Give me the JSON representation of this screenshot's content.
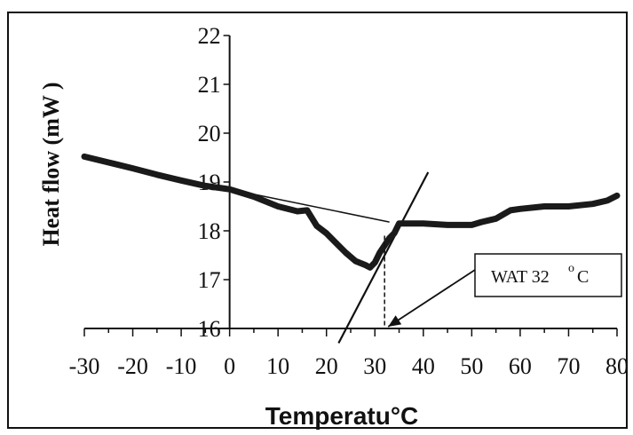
{
  "chart_data": {
    "type": "line",
    "title": "",
    "xlabel": "Temperatu°C",
    "ylabel": "Heat flow   (mW )",
    "xlim": [
      -30,
      80
    ],
    "ylim": [
      16,
      22
    ],
    "x_ticks": [
      "-30",
      "-20",
      "-10",
      "0",
      "10",
      "20",
      "30",
      "40",
      "50",
      "60",
      "70",
      "80"
    ],
    "y_ticks": [
      "16",
      "17",
      "18",
      "19",
      "20",
      "21",
      "22"
    ],
    "grid": false,
    "legend": "none",
    "series": [
      {
        "color": "#1a1a1a",
        "x": [
          -30,
          -25,
          -20,
          -15,
          -10,
          -5,
          0,
          5,
          10,
          14,
          16,
          18,
          20,
          22,
          24,
          26,
          28,
          29,
          30,
          31,
          32,
          33,
          34,
          35,
          40,
          45,
          50,
          52,
          55,
          58,
          60,
          65,
          70,
          75,
          78,
          80
        ],
        "y": [
          19.52,
          19.4,
          19.28,
          19.15,
          19.03,
          18.92,
          18.85,
          18.7,
          18.5,
          18.4,
          18.42,
          18.1,
          17.95,
          17.75,
          17.55,
          17.38,
          17.3,
          17.25,
          17.35,
          17.55,
          17.7,
          17.85,
          17.95,
          18.15,
          18.15,
          18.12,
          18.12,
          18.18,
          18.25,
          18.42,
          18.45,
          18.5,
          18.5,
          18.55,
          18.62,
          18.72
        ]
      }
    ],
    "lines": [
      {
        "name": "baseline",
        "x": [
          0,
          33
        ],
        "y": [
          18.85,
          18.18
        ]
      },
      {
        "name": "onset-tangent",
        "x": [
          22.5,
          41
        ],
        "y": [
          15.7,
          19.2
        ]
      }
    ],
    "annotations": [
      {
        "text": "WAT  32",
        "superscript": "o",
        "unit": "C",
        "x": 32
      }
    ]
  }
}
